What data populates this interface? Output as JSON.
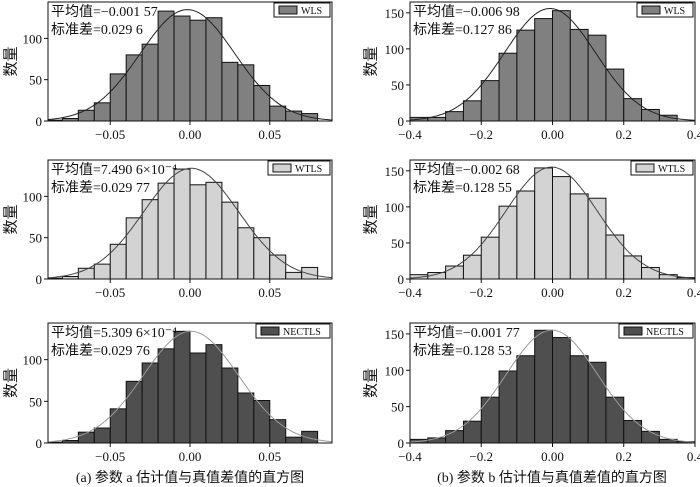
{
  "chart_data": [
    {
      "type": "bar",
      "panel": "a",
      "legend": "WLS",
      "fill": "#808080",
      "curve_color": "#222222",
      "mean_label": "平均值=−0.001 57",
      "std_label": "标准差=0.029 6",
      "mean": -0.00157,
      "std": 0.0296,
      "n": 1000,
      "bin_start": -0.09,
      "bin_width": 0.01,
      "values": [
        1,
        3,
        13,
        22,
        57,
        80,
        93,
        133,
        127,
        122,
        125,
        71,
        68,
        43,
        18,
        12,
        9
      ],
      "xlim": [
        -0.089,
        0.089
      ],
      "ylim": [
        0,
        144
      ],
      "xticks": [
        -0.05,
        0,
        0.05
      ],
      "xtick_labels": [
        "−0.05",
        "0.00",
        "0.05"
      ],
      "yticks": [
        0,
        50,
        100
      ],
      "ylabel": "数量"
    },
    {
      "type": "bar",
      "panel": "b",
      "legend": "WLS",
      "fill": "#808080",
      "curve_color": "#222222",
      "mean_label": "平均值=−0.006 98",
      "std_label": "标准差=0.127 86",
      "mean": -0.00698,
      "std": 0.12786,
      "n": 1000,
      "bin_start": -0.4,
      "bin_width": 0.05,
      "values": [
        5,
        5,
        13,
        28,
        56,
        94,
        126,
        142,
        153,
        127,
        119,
        72,
        31,
        16,
        8
      ],
      "xlim": [
        -0.4,
        0.4
      ],
      "ylim": [
        0,
        165
      ],
      "xticks": [
        -0.4,
        -0.2,
        0,
        0.2,
        0.4
      ],
      "xtick_labels": [
        "−0.4",
        "−0.2",
        "0.00",
        "0.2",
        "0.4"
      ],
      "yticks": [
        0,
        50,
        100,
        150
      ],
      "ylabel": "数量"
    },
    {
      "type": "bar",
      "panel": "a",
      "legend": "WTLS",
      "fill": "#d3d3d3",
      "curve_color": "#444444",
      "mean_label": "平均值=7.490 6×10⁻⁴",
      "std_label": "标准差=0.029 77",
      "mean": 0.00074906,
      "std": 0.02977,
      "n": 1000,
      "bin_start": -0.09,
      "bin_width": 0.01,
      "values": [
        1,
        3,
        13,
        18,
        42,
        74,
        96,
        116,
        133,
        114,
        117,
        93,
        62,
        50,
        29,
        8,
        14
      ],
      "xlim": [
        -0.089,
        0.089
      ],
      "ylim": [
        0,
        144
      ],
      "xticks": [
        -0.05,
        0,
        0.05
      ],
      "xtick_labels": [
        "−0.05",
        "0.00",
        "0.05"
      ],
      "yticks": [
        0,
        50,
        100
      ],
      "ylabel": "数量"
    },
    {
      "type": "bar",
      "panel": "b",
      "legend": "WTLS",
      "fill": "#d3d3d3",
      "curve_color": "#444444",
      "mean_label": "平均值=−0.002 68",
      "std_label": "标准差=0.128 55",
      "mean": -0.00268,
      "std": 0.12855,
      "n": 1000,
      "bin_start": -0.4,
      "bin_width": 0.05,
      "values": [
        6,
        9,
        18,
        33,
        58,
        101,
        122,
        154,
        142,
        118,
        112,
        61,
        32,
        16,
        6,
        2
      ],
      "xlim": [
        -0.4,
        0.4
      ],
      "ylim": [
        0,
        165
      ],
      "xticks": [
        -0.4,
        -0.2,
        0,
        0.2,
        0.4
      ],
      "xtick_labels": [
        "−0.4",
        "−0.2",
        "0.00",
        "0.2",
        "0.4"
      ],
      "yticks": [
        0,
        50,
        100,
        150
      ],
      "ylabel": "数量"
    },
    {
      "type": "bar",
      "panel": "a",
      "legend": "NECTLS",
      "fill": "#4f4f4f",
      "curve_color": "#9a9a9a",
      "mean_label": "平均值=5.309 6×10⁻⁴",
      "std_label": "标准差=0.029 76",
      "mean": 0.00053096,
      "std": 0.02976,
      "n": 1000,
      "bin_start": -0.09,
      "bin_width": 0.01,
      "values": [
        1,
        3,
        13,
        18,
        41,
        74,
        96,
        113,
        134,
        108,
        118,
        90,
        60,
        51,
        28,
        7,
        14
      ],
      "xlim": [
        -0.089,
        0.089
      ],
      "ylim": [
        0,
        144
      ],
      "xticks": [
        -0.05,
        0,
        0.05
      ],
      "xtick_labels": [
        "−0.05",
        "0.00",
        "0.05"
      ],
      "yticks": [
        0,
        50,
        100
      ],
      "ylabel": "数量"
    },
    {
      "type": "bar",
      "panel": "b",
      "legend": "NECTLS",
      "fill": "#4f4f4f",
      "curve_color": "#9a9a9a",
      "mean_label": "平均值=−0.001 77",
      "std_label": "标准差=0.128 53",
      "mean": -0.00177,
      "std": 0.12853,
      "n": 1000,
      "bin_start": -0.4,
      "bin_width": 0.05,
      "values": [
        5,
        7,
        17,
        30,
        63,
        99,
        120,
        155,
        145,
        120,
        111,
        63,
        31,
        16,
        5,
        2
      ],
      "xlim": [
        -0.4,
        0.4
      ],
      "ylim": [
        0,
        165
      ],
      "xticks": [
        -0.4,
        -0.2,
        0,
        0.2,
        0.4
      ],
      "xtick_labels": [
        "−0.4",
        "−0.2",
        "0.00",
        "0.2",
        "0.4"
      ],
      "yticks": [
        0,
        50,
        100,
        150
      ],
      "ylabel": "数量"
    }
  ],
  "captions": {
    "a": "(a) 参数 a 估计值与真值差值的直方图",
    "b": "(b) 参数 b 估计值与真值差值的直方图"
  }
}
